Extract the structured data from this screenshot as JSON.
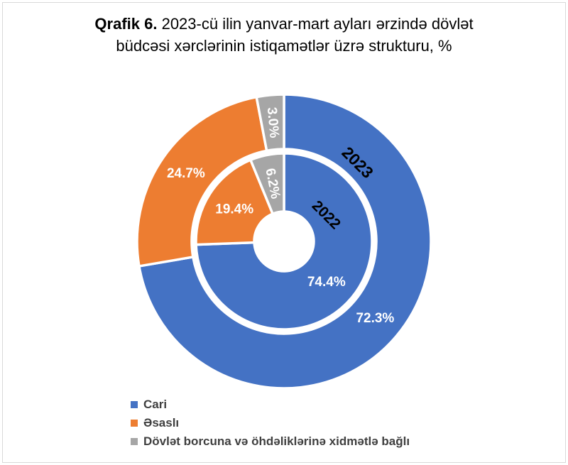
{
  "title": {
    "prefix": "Qrafik 6.",
    "line1_rest": " 2023-cü ilin yanvar-mart ayları ərzində dövlət",
    "line2": "büdcəsi xərclərinin istiqamətlər üzrə strukturu, %"
  },
  "chart_data": {
    "type": "donut",
    "title": "Qrafik 6. 2023-cü ilin yanvar-mart ayları ərzində dövlət büdcəsi xərclərinin istiqamətlər üzrə strukturu, %",
    "unit": "%",
    "categories": [
      "Cari",
      "Əsaslı",
      "Dövlət borcuna və öhdəliklərinə xidmətlə bağlı"
    ],
    "colors": [
      "#4472C4",
      "#ED7D31",
      "#A6A6A6"
    ],
    "rings": [
      {
        "name": "2022",
        "position": "inner",
        "values": [
          74.4,
          19.4,
          6.2
        ],
        "labels": [
          "74.4%",
          "19.4%",
          "6.2%"
        ]
      },
      {
        "name": "2023",
        "position": "outer",
        "values": [
          72.3,
          24.7,
          3.0
        ],
        "labels": [
          "72.3%",
          "24.7%",
          "3.0%"
        ]
      }
    ],
    "start_angle_deg": 0,
    "direction": "clockwise",
    "legend_position": "bottom-left",
    "value_label_color": "#FFFFFF",
    "ring_name_color": "#000000",
    "separator_color": "#FFFFFF"
  }
}
